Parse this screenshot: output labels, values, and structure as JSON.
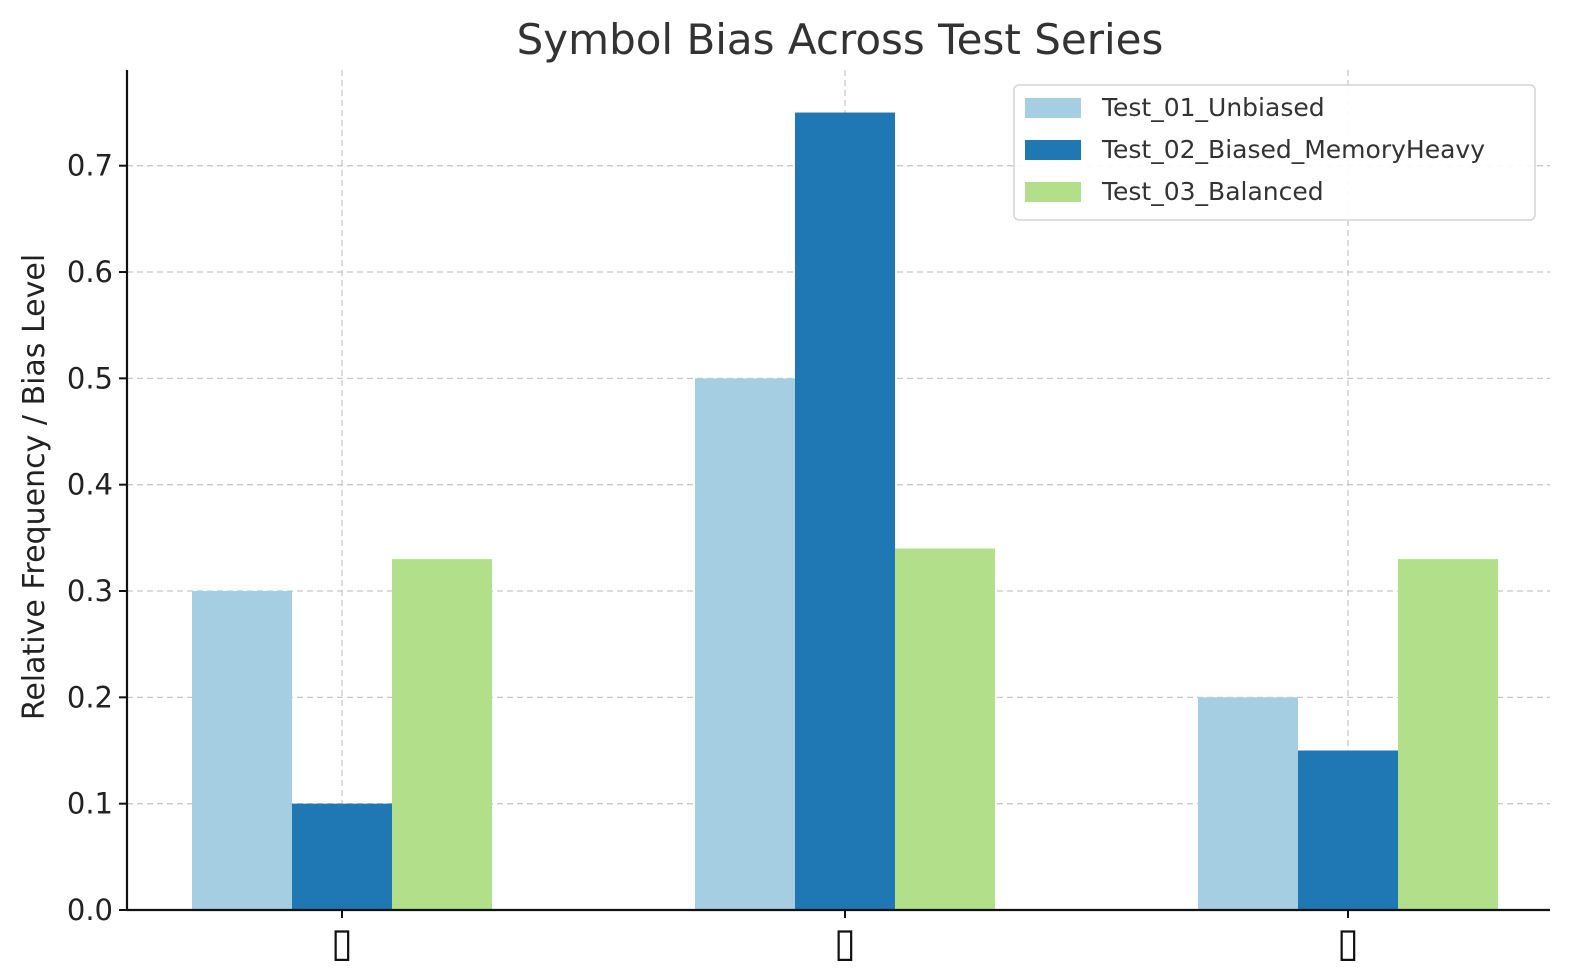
{
  "chart_data": {
    "type": "bar",
    "title": "Symbol Bias Across Test Series",
    "xlabel": "",
    "ylabel": "Relative Frequency / Bias Level",
    "categories": [
      "▯",
      "▯",
      "▯"
    ],
    "series": [
      {
        "name": "Test_01_Unbiased",
        "values": [
          0.3,
          0.5,
          0.2
        ],
        "color": "#a6cee3"
      },
      {
        "name": "Test_02_Biased_MemoryHeavy",
        "values": [
          0.1,
          0.75,
          0.15
        ],
        "color": "#1f78b4"
      },
      {
        "name": "Test_03_Balanced",
        "values": [
          0.33,
          0.34,
          0.33
        ],
        "color": "#b2df8a"
      }
    ],
    "ylim": [
      0,
      0.79
    ],
    "yticks": [
      "0.0",
      "0.1",
      "0.2",
      "0.3",
      "0.4",
      "0.5",
      "0.6",
      "0.7"
    ],
    "grid": true,
    "legend_position": "top-right"
  }
}
